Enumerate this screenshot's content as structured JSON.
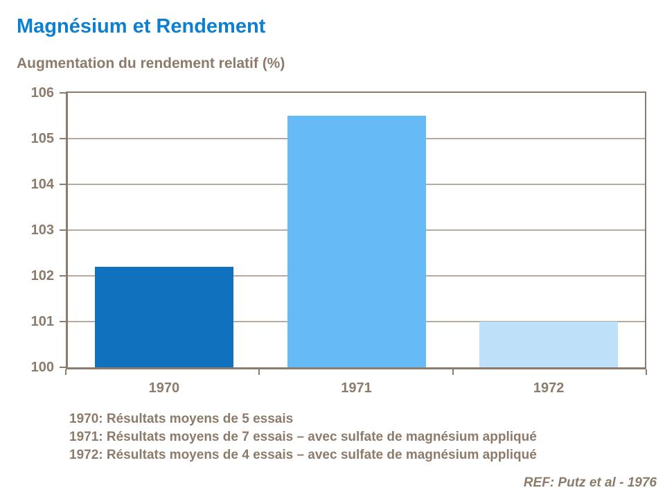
{
  "title": "Magnésium et Rendement",
  "subtitle": "Augmentation du rendement relatif (%)",
  "footnotes": [
    "1970: Résultats moyens de 5 essais",
    "1971: Résultats moyens de 7 essais – avec sulfate de magnésium appliqué",
    "1972: Résultats moyens de 4 essais – avec sulfate de magnésium appliqué"
  ],
  "reference": "REF: Putz et al - 1976",
  "colors": {
    "title_blue": "#0d7fd1",
    "text_brown": "#8c7b6b",
    "axis": "#8c7b6b",
    "gridline": "#b7aa9c",
    "bar_1970": "#1072be",
    "bar_1971": "#66bbf7",
    "bar_1972": "#bfe0f9"
  },
  "chart_data": {
    "type": "bar",
    "categories": [
      "1970",
      "1971",
      "1972"
    ],
    "values": [
      102.2,
      105.5,
      101
    ],
    "title": "Magnésium et Rendement",
    "xlabel": "",
    "ylabel": "Augmentation du rendement relatif (%)",
    "ylim": [
      100,
      106
    ],
    "ytick_step": 1,
    "grid": true,
    "legend": false,
    "bar_colors": [
      "#1072be",
      "#66bbf7",
      "#bfe0f9"
    ]
  }
}
